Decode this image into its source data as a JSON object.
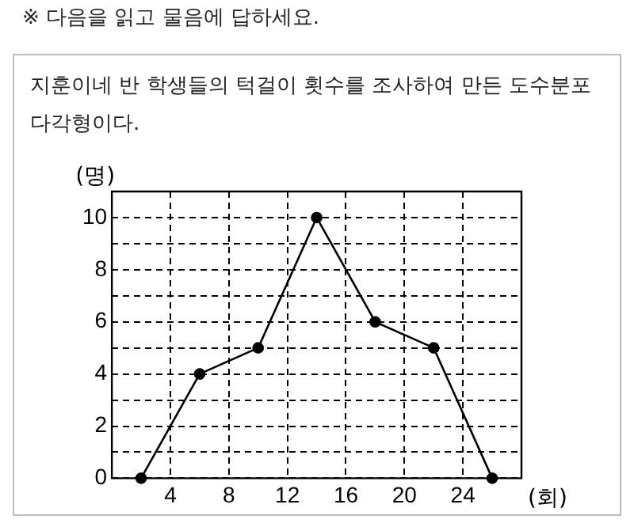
{
  "chart_data": {
    "type": "line",
    "title": "※ 다음을 읽고 물음에 답하세요.",
    "subtitle": "지훈이네 반 학생들의 턱걸이 횟수를 조사하여 만든 도수분포 다각형이다.",
    "xlabel": "(회)",
    "ylabel": "(명)",
    "x": [
      2,
      6,
      10,
      14,
      18,
      22,
      26
    ],
    "series": [
      {
        "color": "#000000",
        "values": [
          0,
          4,
          5,
          10,
          6,
          5,
          0
        ]
      }
    ],
    "xlim": [
      0,
      28
    ],
    "xticks": [
      4,
      8,
      12,
      16,
      20,
      24
    ],
    "ylim": [
      0,
      11
    ],
    "yticks": [
      0,
      {
        "value": 1,
        "label": null
      },
      2,
      {
        "value": 3,
        "label": null
      },
      4,
      {
        "value": 5,
        "label": null
      },
      6,
      {
        "value": 7,
        "label": null
      },
      8,
      {
        "value": 9,
        "label": null
      },
      10
    ],
    "grid": true,
    "marker": "circle",
    "line_style": "solid",
    "legend": false
  }
}
